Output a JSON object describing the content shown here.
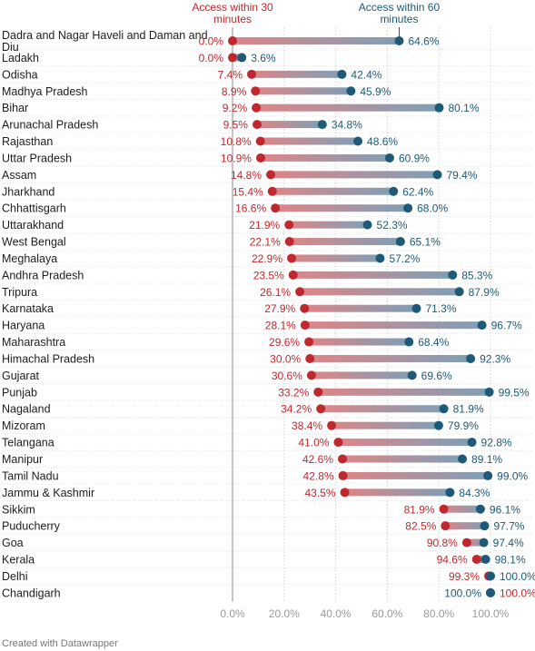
{
  "chart_data": {
    "type": "dumbbell",
    "legend": [
      {
        "name": "Access within 30 minutes",
        "lines": [
          "Access within 30",
          "minutes"
        ],
        "color": "#c0282f"
      },
      {
        "name": "Access within 60 minutes",
        "lines": [
          "Access within 60",
          "minutes"
        ],
        "color": "#1e5a78"
      }
    ],
    "xlim": [
      0,
      100
    ],
    "ticks": [
      0,
      20,
      40,
      60,
      80,
      100
    ],
    "tick_labels": [
      "0.0%",
      "20.0%",
      "40.0%",
      "60.0%",
      "80.0%",
      "100.0%"
    ],
    "rows": [
      {
        "state": [
          "Dadra and Nagar Haveli and Daman and",
          "Diu"
        ],
        "a30": 0.0,
        "a60": 64.6,
        "a30_label": "0.0%",
        "a60_label": "64.6%"
      },
      {
        "state": [
          "Ladakh"
        ],
        "a30": 0.0,
        "a60": 3.6,
        "a30_label": "0.0%",
        "a60_label": "3.6%"
      },
      {
        "state": [
          "Odisha"
        ],
        "a30": 7.4,
        "a60": 42.4,
        "a30_label": "7.4%",
        "a60_label": "42.4%"
      },
      {
        "state": [
          "Madhya Pradesh"
        ],
        "a30": 8.9,
        "a60": 45.9,
        "a30_label": "8.9%",
        "a60_label": "45.9%"
      },
      {
        "state": [
          "Bihar"
        ],
        "a30": 9.2,
        "a60": 80.1,
        "a30_label": "9.2%",
        "a60_label": "80.1%"
      },
      {
        "state": [
          "Arunachal Pradesh"
        ],
        "a30": 9.5,
        "a60": 34.8,
        "a30_label": "9.5%",
        "a60_label": "34.8%"
      },
      {
        "state": [
          "Rajasthan"
        ],
        "a30": 10.8,
        "a60": 48.6,
        "a30_label": "10.8%",
        "a60_label": "48.6%"
      },
      {
        "state": [
          "Uttar Pradesh"
        ],
        "a30": 10.9,
        "a60": 60.9,
        "a30_label": "10.9%",
        "a60_label": "60.9%"
      },
      {
        "state": [
          "Assam"
        ],
        "a30": 14.8,
        "a60": 79.4,
        "a30_label": "14.8%",
        "a60_label": "79.4%"
      },
      {
        "state": [
          "Jharkhand"
        ],
        "a30": 15.4,
        "a60": 62.4,
        "a30_label": "15.4%",
        "a60_label": "62.4%"
      },
      {
        "state": [
          "Chhattisgarh"
        ],
        "a30": 16.6,
        "a60": 68.0,
        "a30_label": "16.6%",
        "a60_label": "68.0%"
      },
      {
        "state": [
          "Uttarakhand"
        ],
        "a30": 21.9,
        "a60": 52.3,
        "a30_label": "21.9%",
        "a60_label": "52.3%"
      },
      {
        "state": [
          "West Bengal"
        ],
        "a30": 22.1,
        "a60": 65.1,
        "a30_label": "22.1%",
        "a60_label": "65.1%"
      },
      {
        "state": [
          "Meghalaya"
        ],
        "a30": 22.9,
        "a60": 57.2,
        "a30_label": "22.9%",
        "a60_label": "57.2%"
      },
      {
        "state": [
          "Andhra Pradesh"
        ],
        "a30": 23.5,
        "a60": 85.3,
        "a30_label": "23.5%",
        "a60_label": "85.3%"
      },
      {
        "state": [
          "Tripura"
        ],
        "a30": 26.1,
        "a60": 87.9,
        "a30_label": "26.1%",
        "a60_label": "87.9%"
      },
      {
        "state": [
          "Karnataka"
        ],
        "a30": 27.9,
        "a60": 71.3,
        "a30_label": "27.9%",
        "a60_label": "71.3%"
      },
      {
        "state": [
          "Haryana"
        ],
        "a30": 28.1,
        "a60": 96.7,
        "a30_label": "28.1%",
        "a60_label": "96.7%"
      },
      {
        "state": [
          "Maharashtra"
        ],
        "a30": 29.6,
        "a60": 68.4,
        "a30_label": "29.6%",
        "a60_label": "68.4%"
      },
      {
        "state": [
          "Himachal Pradesh"
        ],
        "a30": 30.0,
        "a60": 92.3,
        "a30_label": "30.0%",
        "a60_label": "92.3%"
      },
      {
        "state": [
          "Gujarat"
        ],
        "a30": 30.6,
        "a60": 69.6,
        "a30_label": "30.6%",
        "a60_label": "69.6%"
      },
      {
        "state": [
          "Punjab"
        ],
        "a30": 33.2,
        "a60": 99.5,
        "a30_label": "33.2%",
        "a60_label": "99.5%"
      },
      {
        "state": [
          "Nagaland"
        ],
        "a30": 34.2,
        "a60": 81.9,
        "a30_label": "34.2%",
        "a60_label": "81.9%"
      },
      {
        "state": [
          "Mizoram"
        ],
        "a30": 38.4,
        "a60": 79.9,
        "a30_label": "38.4%",
        "a60_label": "79.9%"
      },
      {
        "state": [
          "Telangana"
        ],
        "a30": 41.0,
        "a60": 92.8,
        "a30_label": "41.0%",
        "a60_label": "92.8%"
      },
      {
        "state": [
          "Manipur"
        ],
        "a30": 42.6,
        "a60": 89.1,
        "a30_label": "42.6%",
        "a60_label": "89.1%"
      },
      {
        "state": [
          "Tamil Nadu"
        ],
        "a30": 42.8,
        "a60": 99.0,
        "a30_label": "42.8%",
        "a60_label": "99.0%"
      },
      {
        "state": [
          "Jammu & Kashmir"
        ],
        "a30": 43.5,
        "a60": 84.3,
        "a30_label": "43.5%",
        "a60_label": "84.3%"
      },
      {
        "state": [
          "Sikkim"
        ],
        "a30": 81.9,
        "a60": 96.1,
        "a30_label": "81.9%",
        "a60_label": "96.1%"
      },
      {
        "state": [
          "Puducherry"
        ],
        "a30": 82.5,
        "a60": 97.7,
        "a30_label": "82.5%",
        "a60_label": "97.7%"
      },
      {
        "state": [
          "Goa"
        ],
        "a30": 90.8,
        "a60": 97.4,
        "a30_label": "90.8%",
        "a60_label": "97.4%"
      },
      {
        "state": [
          "Kerala"
        ],
        "a30": 94.6,
        "a60": 98.1,
        "a30_label": "94.6%",
        "a60_label": "98.1%"
      },
      {
        "state": [
          "Delhi"
        ],
        "a30": 99.3,
        "a60": 100.0,
        "a30_label": "99.3%",
        "a60_label": "100.0%"
      },
      {
        "state": [
          "Chandigarh"
        ],
        "a30": 100.0,
        "a60": 100.0,
        "a30_label": "100.0%",
        "a60_label": "100.0%",
        "swap_labels": true
      }
    ]
  },
  "footer": {
    "credit": "Created with Datawrapper"
  },
  "colors": {
    "red": "#c0282f",
    "blue": "#1e5a78",
    "grid": "#d4d4d4",
    "tick": "#9a9a9a"
  }
}
